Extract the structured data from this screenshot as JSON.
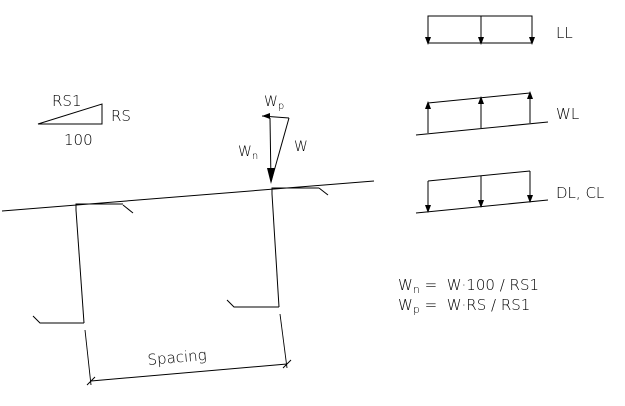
{
  "slope_legend": {
    "hypotenuse_label": "RS1",
    "rise_label": "RS",
    "run_label": "100"
  },
  "force_vectors": {
    "parallel_label": "W",
    "parallel_sub": "p",
    "normal_label": "W",
    "normal_sub": "n",
    "resultant_label": "W"
  },
  "load_cases": {
    "live_load": "LL",
    "wind_load": "WL",
    "dead_collateral_load": "DL, CL"
  },
  "dimension": {
    "label": "Spacing"
  },
  "formulas": {
    "normal": {
      "lhs": "W",
      "lhs_sub": "n",
      "rhs": " =  W·100 / RS1"
    },
    "parallel": {
      "lhs": "W",
      "lhs_sub": "p",
      "rhs": " =  W·RS / RS1"
    }
  }
}
